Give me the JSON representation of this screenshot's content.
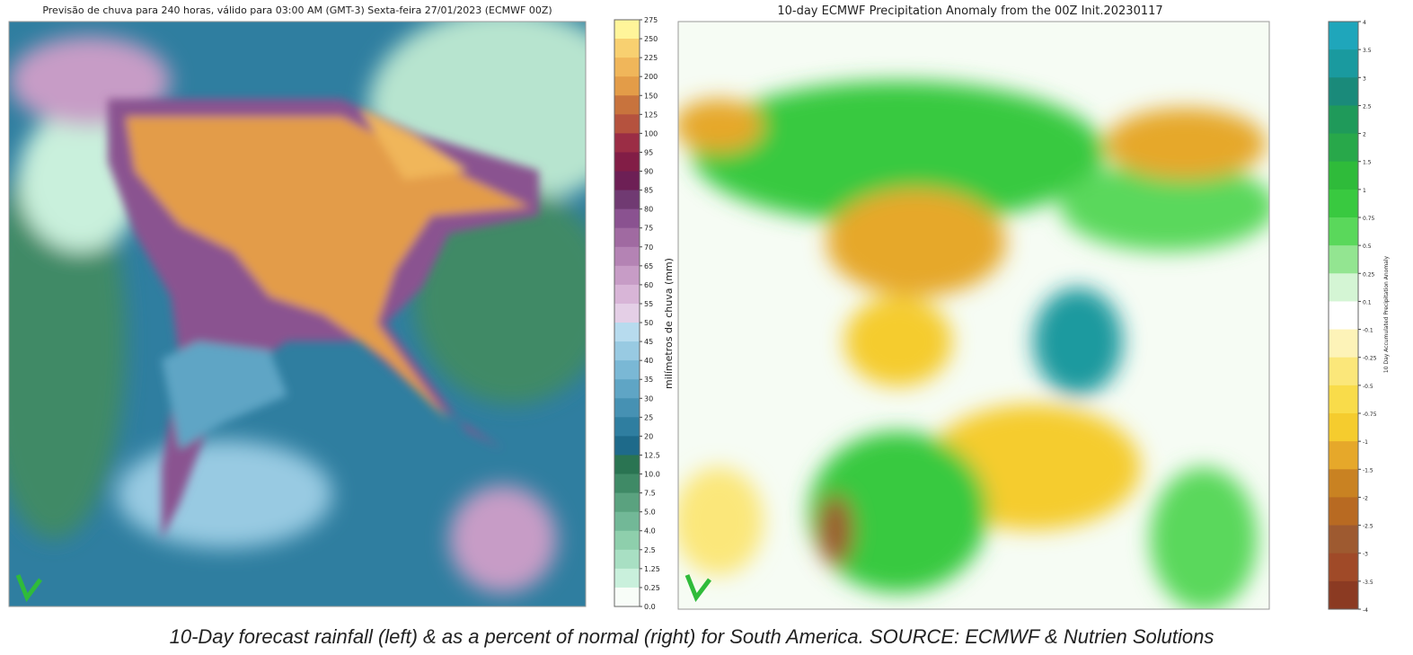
{
  "left_panel": {
    "title": "Previsão de chuva para 240 horas, válido para 03:00 AM (GMT-3) Sexta-feira 27/01/2023 (ECMWF 00Z)",
    "colorbar": {
      "label": "milímetros de chuva (mm)",
      "ticks": [
        "275",
        "250",
        "225",
        "200",
        "150",
        "125",
        "100",
        "95",
        "90",
        "85",
        "80",
        "75",
        "70",
        "65",
        "60",
        "55",
        "50",
        "45",
        "40",
        "35",
        "30",
        "25",
        "20",
        "12.5",
        "10.0",
        "7.5",
        "5.0",
        "4.0",
        "2.5",
        "1.25",
        "0.25",
        "0.0"
      ],
      "colors": [
        "#fff59a",
        "#f8d070",
        "#f0b65a",
        "#e39c48",
        "#c8733d",
        "#b5523e",
        "#9b2d45",
        "#821d46",
        "#6d1f55",
        "#703a72",
        "#8a5290",
        "#a06aa1",
        "#b483b4",
        "#c79cc6",
        "#d8b5d7",
        "#e4cfe6",
        "#b7dbee",
        "#98cae2",
        "#7ab8d5",
        "#5fa5c5",
        "#4691b3",
        "#2f7ea0",
        "#1e6a8a",
        "#2a7452",
        "#3f8a66",
        "#5aa27f",
        "#72b897",
        "#8ecfac",
        "#a8dfc3",
        "#c9f0dc",
        "#f8fdf8"
      ]
    }
  },
  "right_panel": {
    "title": "10-day ECMWF Precipitation Anomaly from the 00Z Init.20230117",
    "colorbar": {
      "label": "10 Day Accumulated Precipitation Anomaly",
      "ticks": [
        "4",
        "3.5",
        "3",
        "2.5",
        "2",
        "1.5",
        "1",
        "0.75",
        "0.5",
        "0.25",
        "0.1",
        "-0.1",
        "-0.25",
        "-0.5",
        "-0.75",
        "-1",
        "-1.5",
        "-2",
        "-2.5",
        "-3",
        "-3.5",
        "-4"
      ],
      "colors": [
        "#1fa6bb",
        "#1a9a9f",
        "#1a8a7a",
        "#1f9a5a",
        "#28a84a",
        "#2fbb3a",
        "#39c940",
        "#5ad85b",
        "#93e591",
        "#d4f5d4",
        "#ffffff",
        "#fdf3b8",
        "#fbe77a",
        "#f9dc4a",
        "#f5cc2e",
        "#e6a82a",
        "#c98222",
        "#b86a22",
        "#9e5a30",
        "#a04a28",
        "#8b3a22"
      ]
    }
  },
  "caption": "10-Day forecast rainfall (left) & as a percent of normal (right) for South America. SOURCE: ECMWF & Nutrien Solutions"
}
